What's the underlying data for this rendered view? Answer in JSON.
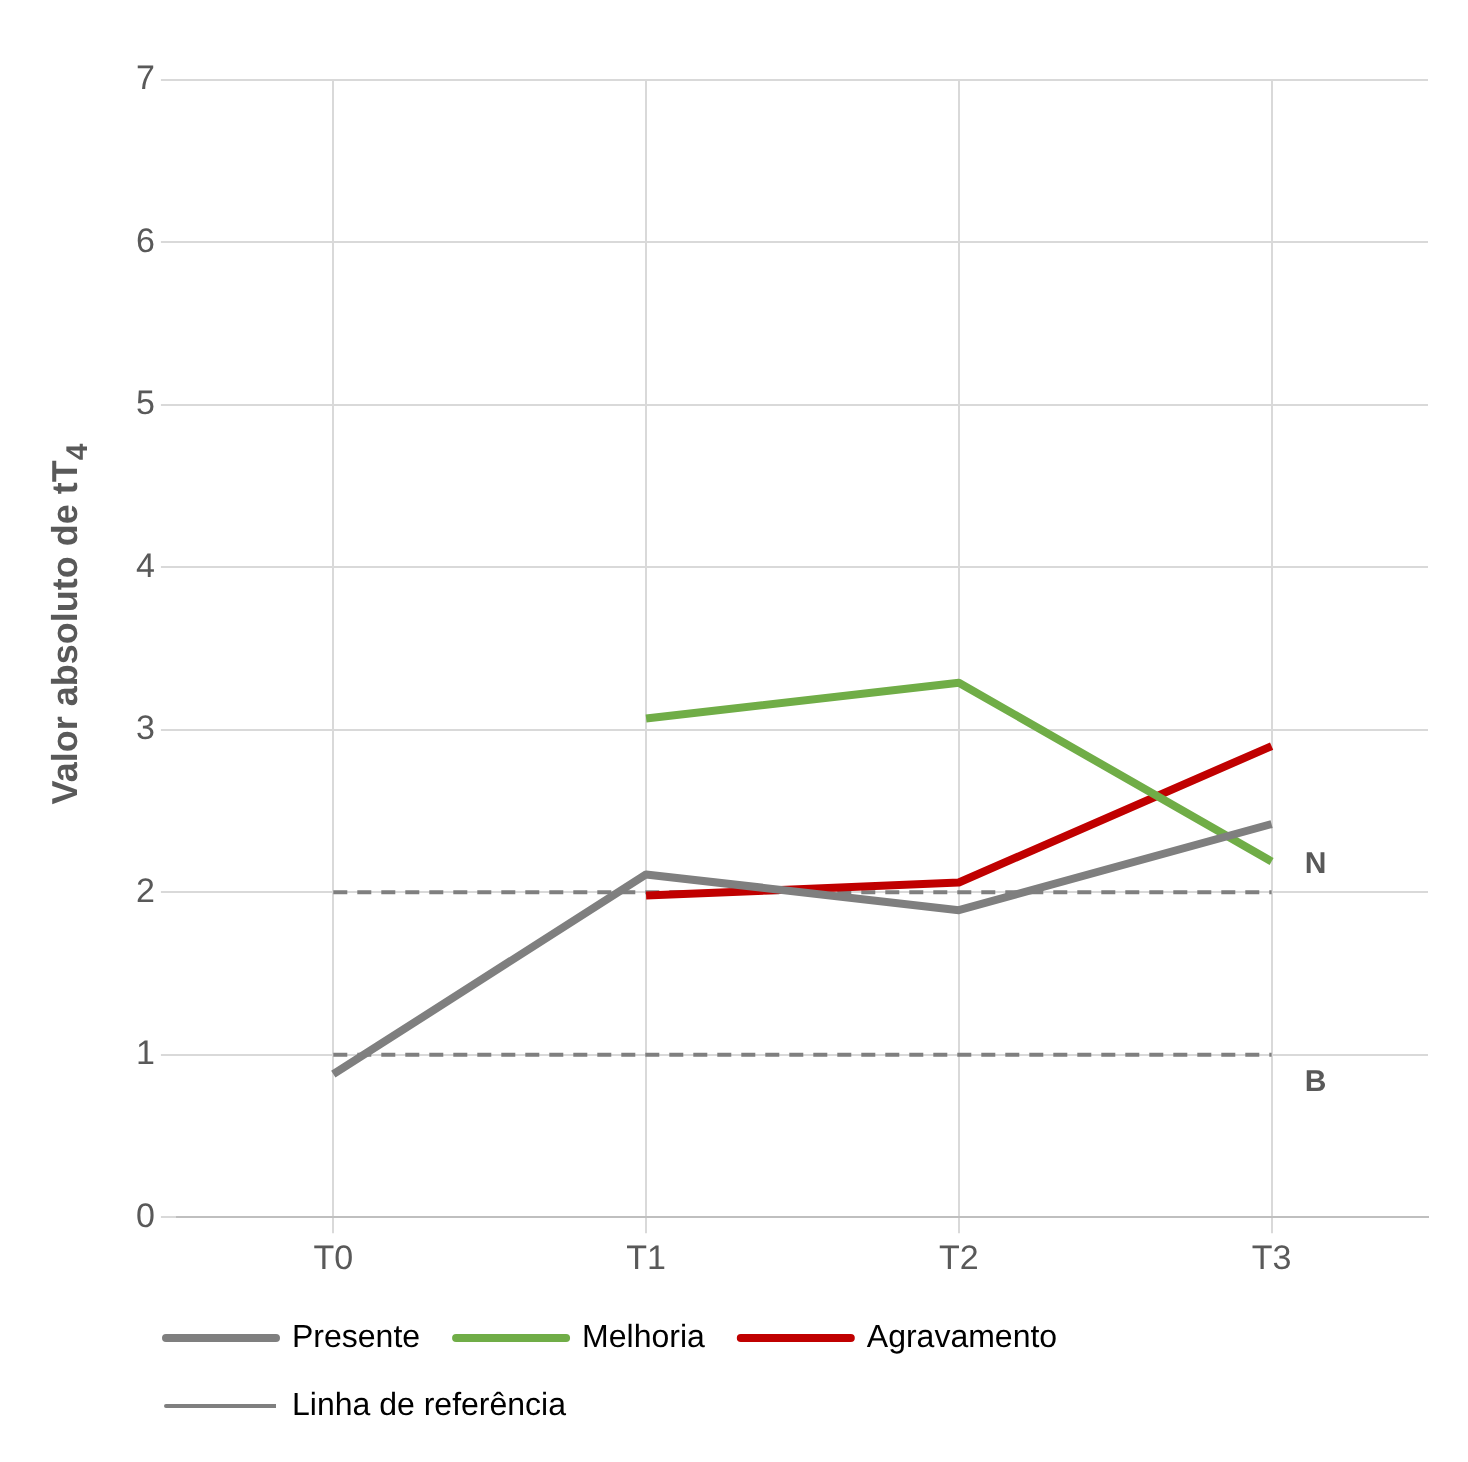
{
  "chart_data": {
    "type": "line",
    "ylabel": "Valor absoluto de tT$_{4}$",
    "categories": [
      "T0",
      "T1",
      "T2",
      "T3"
    ],
    "series": [
      {
        "name": "Presente",
        "color": "#7f7f7f",
        "values": [
          0.88,
          2.11,
          1.89,
          2.42
        ]
      },
      {
        "name": "Melhoria",
        "color": "#70ad47",
        "values": [
          null,
          3.07,
          3.29,
          2.19
        ]
      },
      {
        "name": "Agravamento",
        "color": "#c00000",
        "values": [
          null,
          1.98,
          2.06,
          2.9
        ]
      },
      {
        "name": "Linha de referência",
        "color": "#7f7f7f",
        "line_style": "dashed",
        "values": [
          2,
          2,
          2,
          2
        ]
      },
      {
        "color": "#7f7f7f",
        "line_style": "dashed",
        "values": [
          1,
          1,
          1,
          1
        ]
      }
    ],
    "annotations": [
      {
        "text": "N",
        "x": "T3",
        "y": 2
      },
      {
        "text": "B",
        "x": "T3",
        "y": 1
      }
    ],
    "ylim": [
      0,
      7
    ],
    "yticks": [
      0,
      1,
      2,
      3,
      4,
      5,
      6,
      7
    ],
    "grid": true,
    "legend": "bottom",
    "marker": "none",
    "line_style": "solid"
  }
}
